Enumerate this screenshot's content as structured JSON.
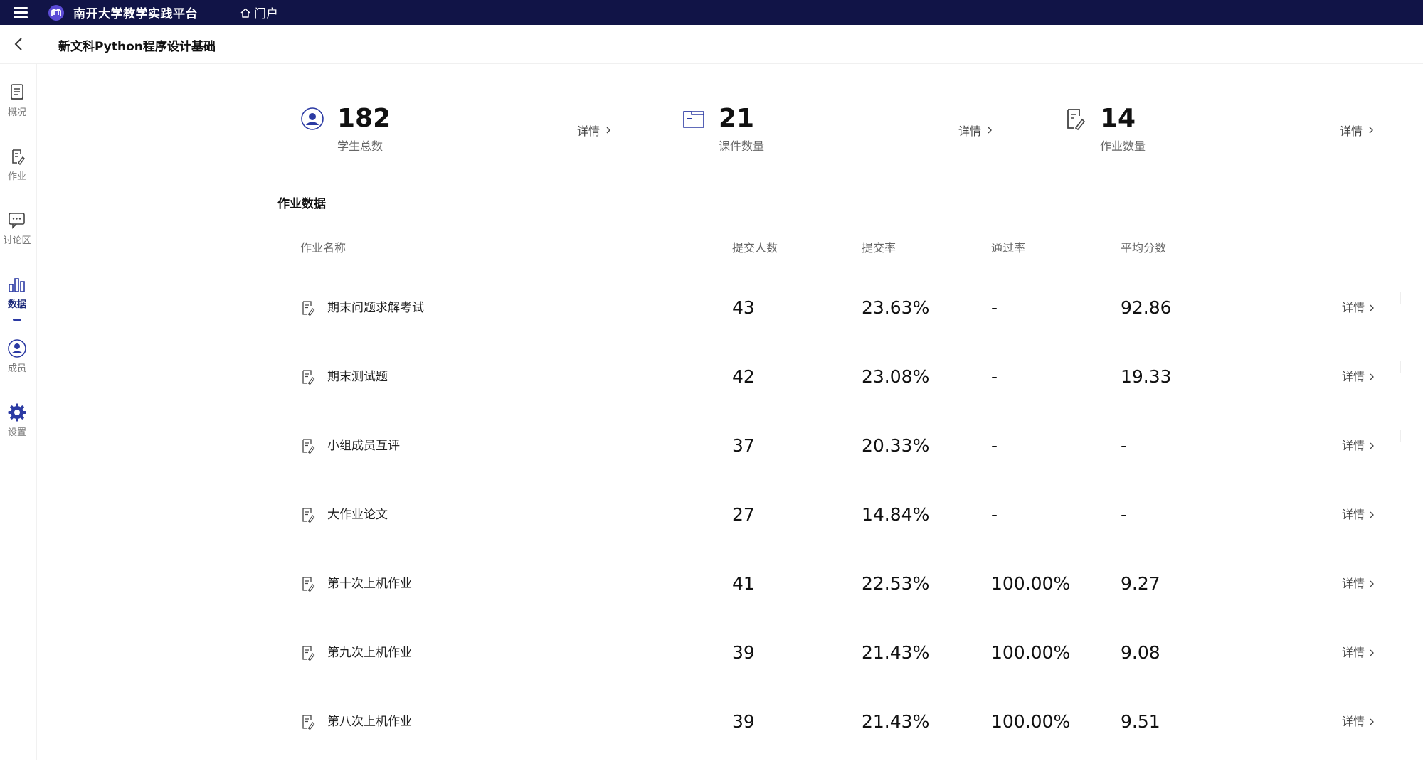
{
  "topbar": {
    "platform_name": "南开大学教学实践平台",
    "portal_label": "门户"
  },
  "course": {
    "title": "新文科Python程序设计基础"
  },
  "sidebar": {
    "items": [
      {
        "label": "概况",
        "icon": "document-icon"
      },
      {
        "label": "作业",
        "icon": "assignment-icon"
      },
      {
        "label": "讨论区",
        "icon": "chat-icon"
      },
      {
        "label": "数据",
        "icon": "bar-chart-icon",
        "active": true
      },
      {
        "label": "成员",
        "icon": "user-icon"
      },
      {
        "label": "设置",
        "icon": "gear-icon"
      }
    ]
  },
  "stats": [
    {
      "value": "182",
      "caption": "学生总数",
      "more": "详情"
    },
    {
      "value": "21",
      "caption": "课件数量",
      "more": "详情"
    },
    {
      "value": "14",
      "caption": "作业数量",
      "more": "详情"
    }
  ],
  "section_title": "作业数据",
  "table": {
    "headers": {
      "name": "作业名称",
      "submitted": "提交人数",
      "submit_rate": "提交率",
      "pass_rate": "通过率",
      "avg_score": "平均分数"
    },
    "more_label": "详情",
    "rows": [
      {
        "name": "期末问题求解考试",
        "submitted": "43",
        "submit_rate": "23.63%",
        "pass_rate": "-",
        "avg_score": "92.86"
      },
      {
        "name": "期末测试题",
        "submitted": "42",
        "submit_rate": "23.08%",
        "pass_rate": "-",
        "avg_score": "19.33"
      },
      {
        "name": "小组成员互评",
        "submitted": "37",
        "submit_rate": "20.33%",
        "pass_rate": "-",
        "avg_score": "-"
      },
      {
        "name": "大作业论文",
        "submitted": "27",
        "submit_rate": "14.84%",
        "pass_rate": "-",
        "avg_score": "-"
      },
      {
        "name": "第十次上机作业",
        "submitted": "41",
        "submit_rate": "22.53%",
        "pass_rate": "100.00%",
        "avg_score": "9.27"
      },
      {
        "name": "第九次上机作业",
        "submitted": "39",
        "submit_rate": "21.43%",
        "pass_rate": "100.00%",
        "avg_score": "9.08"
      },
      {
        "name": "第八次上机作业",
        "submitted": "39",
        "submit_rate": "21.43%",
        "pass_rate": "100.00%",
        "avg_score": "9.51"
      }
    ]
  },
  "colors": {
    "topbar_bg": "#111447",
    "accent": "#2b3aa3"
  }
}
